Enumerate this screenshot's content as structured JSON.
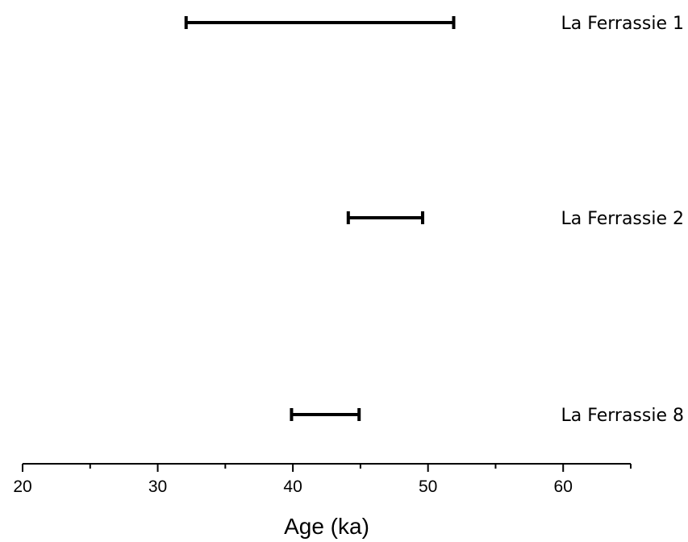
{
  "chart_data": {
    "type": "range",
    "title": "",
    "xlabel": "Age (ka)",
    "ylabel": "",
    "xlim": [
      20,
      65
    ],
    "x_ticks": [
      "20",
      "30",
      "40",
      "50",
      "60"
    ],
    "grid": false,
    "ranges": [
      {
        "label": "La Ferrassie 1",
        "start": 32.1,
        "end": 51.9
      },
      {
        "label": "La Ferrassie 2",
        "start": 44.1,
        "end": 49.6
      },
      {
        "label": "La Ferrassie 8",
        "start": 39.9,
        "end": 44.9
      }
    ],
    "colors": {
      "bar": "#000000",
      "axis": "#000000"
    }
  }
}
